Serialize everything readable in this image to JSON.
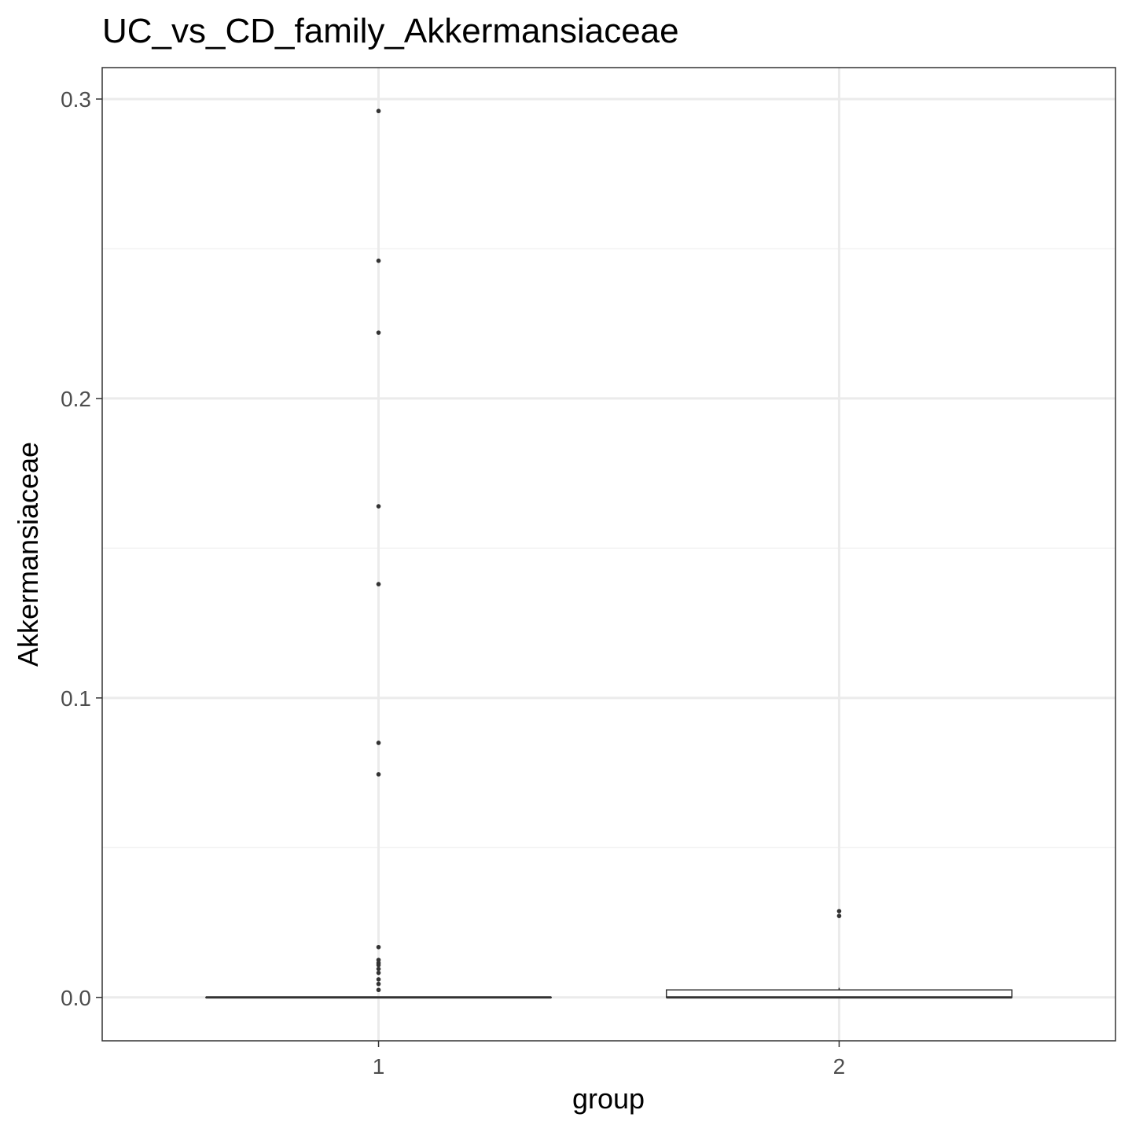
{
  "chart_data": {
    "type": "boxplot",
    "title": "UC_vs_CD_family_Akkermansiaceae",
    "xlabel": "group",
    "ylabel": "Akkermansiaceae",
    "categories": [
      "1",
      "2"
    ],
    "ylim": [
      -0.0145,
      0.3105
    ],
    "yticks": [
      0.0,
      0.1,
      0.2,
      0.3
    ],
    "ytick_labels": [
      "0.0",
      "0.1",
      "0.2",
      "0.3"
    ],
    "grid": true,
    "boxes": [
      {
        "group": "1",
        "q1": 0.0,
        "median": 0.0,
        "q3": 0.0,
        "whisker_low": 0.0,
        "whisker_high": 0.0,
        "outliers": [
          0.296,
          0.246,
          0.222,
          0.164,
          0.138,
          0.085,
          0.0745,
          0.0168,
          0.0125,
          0.0115,
          0.0108,
          0.0095,
          0.0082,
          0.006,
          0.0045,
          0.0025
        ]
      },
      {
        "group": "2",
        "q1": 0.0,
        "median": 0.0,
        "q3": 0.0025,
        "whisker_low": 0.0,
        "whisker_high": 0.0032,
        "outliers": [
          0.0288,
          0.0272
        ]
      }
    ],
    "colors": {
      "panel_border": "#333333",
      "grid_major": "#ebebeb",
      "grid_minor": "#f2f2f2",
      "box_line": "#333333",
      "box_fill": "#ffffff",
      "point": "#333333",
      "tick_text": "#4d4d4d",
      "axis_title": "#000000"
    }
  }
}
